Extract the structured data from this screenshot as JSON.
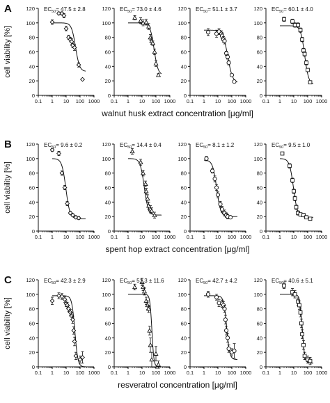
{
  "figure": {
    "shared_y_label": "cell viability [%]",
    "shared_y_ticks": [
      0,
      20,
      40,
      60,
      80,
      100,
      120
    ],
    "shared_x_ticks_labels": [
      "0.1",
      "1",
      "10",
      "100",
      "1000"
    ],
    "ec50_prefix": "EC",
    "ec50_subscript": "50",
    "ec50_separator": "= "
  },
  "chart_data": [
    {
      "type": "scatter",
      "panel_letter": "A",
      "xlabel": "walnut husk extract concentration [μg/ml]",
      "ylabel": "cell viability [%]",
      "x_scale": "log",
      "xlim": [
        0.1,
        1000
      ],
      "ylim": [
        0,
        120
      ],
      "grid": false,
      "subplots": [
        {
          "marker": "diamond",
          "ec50": "47.5 ± 2.8",
          "ec50_value": 47.5,
          "top": 100,
          "bottom": 33,
          "hill": 3,
          "points": [
            [
              1,
              101,
              3
            ],
            [
              3,
              113,
              2
            ],
            [
              5,
              113,
              2
            ],
            [
              7,
              110,
              3
            ],
            [
              10,
              92,
              3
            ],
            [
              15,
              80,
              3
            ],
            [
              20,
              77,
              3
            ],
            [
              25,
              74,
              4
            ],
            [
              30,
              69,
              3
            ],
            [
              40,
              66,
              4
            ],
            [
              80,
              42,
              3
            ],
            [
              150,
              22,
              1
            ]
          ]
        },
        {
          "marker": "triangle",
          "ec50": "73.0 ± 4.6",
          "ec50_value": 73.0,
          "top": 100,
          "bottom": 28,
          "hill": 3,
          "points": [
            [
              3,
              107,
              3
            ],
            [
              8,
              103,
              4
            ],
            [
              12,
              100,
              4
            ],
            [
              20,
              101,
              4
            ],
            [
              30,
              95,
              4
            ],
            [
              40,
              80,
              4
            ],
            [
              50,
              75,
              4
            ],
            [
              60,
              72,
              3
            ],
            [
              80,
              60,
              4
            ],
            [
              100,
              44,
              4
            ],
            [
              150,
              28,
              2
            ]
          ]
        },
        {
          "marker": "circle",
          "ec50": "51.1 ± 3.7",
          "ec50_value": 51.1,
          "top": 90,
          "bottom": 17,
          "hill": 2.5,
          "points": [
            [
              2,
              87,
              5
            ],
            [
              8,
              85,
              5
            ],
            [
              12,
              88,
              4
            ],
            [
              18,
              85,
              4
            ],
            [
              20,
              82,
              4
            ],
            [
              25,
              77,
              4
            ],
            [
              30,
              75,
              4
            ],
            [
              40,
              58,
              3
            ],
            [
              50,
              53,
              3
            ],
            [
              60,
              45,
              3
            ],
            [
              100,
              28,
              2
            ],
            [
              150,
              19,
              2
            ]
          ]
        },
        {
          "marker": "square",
          "ec50": "60.1 ± 4.0",
          "ec50_value": 60.1,
          "top": 96,
          "bottom": 15,
          "hill": 3,
          "points": [
            [
              2,
              105,
              3
            ],
            [
              8,
              102,
              3
            ],
            [
              12,
              97,
              3
            ],
            [
              20,
              97,
              3
            ],
            [
              30,
              90,
              3
            ],
            [
              40,
              77,
              3
            ],
            [
              50,
              62,
              3
            ],
            [
              60,
              57,
              3
            ],
            [
              80,
              45,
              3
            ],
            [
              100,
              35,
              2
            ],
            [
              150,
              18,
              2
            ]
          ]
        }
      ]
    },
    {
      "type": "scatter",
      "panel_letter": "B",
      "xlabel": "spent hop extract concentration [μg/ml]",
      "ylabel": "cell viability [%]",
      "x_scale": "log",
      "xlim": [
        0.1,
        1000
      ],
      "ylim": [
        0,
        120
      ],
      "grid": false,
      "subplots": [
        {
          "marker": "diamond",
          "ec50": "9.6 ± 0.2",
          "ec50_value": 9.6,
          "top": 100,
          "bottom": 17,
          "hill": 3,
          "points": [
            [
              1,
              112,
              2
            ],
            [
              3,
              107,
              3
            ],
            [
              5,
              80,
              3
            ],
            [
              8,
              60,
              3
            ],
            [
              12,
              38,
              3
            ],
            [
              20,
              25,
              2
            ],
            [
              30,
              22,
              2
            ],
            [
              50,
              19,
              2
            ],
            [
              80,
              18,
              2
            ]
          ]
        },
        {
          "marker": "triangle",
          "ec50": "14.4 ± 0.4",
          "ec50_value": 14.4,
          "top": 100,
          "bottom": 22,
          "hill": 3,
          "points": [
            [
              2,
              110,
              4
            ],
            [
              8,
              95,
              4
            ],
            [
              12,
              80,
              4
            ],
            [
              18,
              65,
              4
            ],
            [
              20,
              55,
              4
            ],
            [
              25,
              45,
              5
            ],
            [
              30,
              35,
              5
            ],
            [
              40,
              30,
              5
            ],
            [
              50,
              28,
              4
            ],
            [
              80,
              22,
              4
            ]
          ]
        },
        {
          "marker": "circle",
          "ec50": "8.1 ± 1.2",
          "ec50_value": 8.1,
          "top": 98,
          "bottom": 20,
          "hill": 3,
          "points": [
            [
              1.5,
              100,
              3
            ],
            [
              4,
              83,
              3
            ],
            [
              6,
              72,
              4
            ],
            [
              8,
              60,
              4
            ],
            [
              10,
              50,
              4
            ],
            [
              15,
              37,
              4
            ],
            [
              20,
              30,
              4
            ],
            [
              30,
              25,
              4
            ],
            [
              40,
              22,
              3
            ],
            [
              50,
              20,
              3
            ],
            [
              80,
              19,
              2
            ]
          ]
        },
        {
          "marker": "square",
          "ec50": "9.5 ± 1.0",
          "ec50_value": 9.5,
          "top": 100,
          "bottom": 19,
          "hill": 3,
          "points": [
            [
              1.5,
              107,
              2
            ],
            [
              5,
              90,
              3
            ],
            [
              8,
              70,
              3
            ],
            [
              10,
              55,
              3
            ],
            [
              12,
              45,
              3
            ],
            [
              15,
              33,
              3
            ],
            [
              20,
              25,
              3
            ],
            [
              30,
              23,
              2
            ],
            [
              50,
              22,
              2
            ],
            [
              80,
              19,
              2
            ],
            [
              150,
              17,
              2
            ]
          ]
        }
      ]
    },
    {
      "type": "scatter",
      "panel_letter": "C",
      "xlabel": "resveratrol concentration [μg/ml]",
      "ylabel": "cell viability [%]",
      "x_scale": "log",
      "xlim": [
        0.1,
        1000
      ],
      "ylim": [
        0,
        120
      ],
      "grid": false,
      "subplots": [
        {
          "marker": "diamond",
          "ec50": "42.3 ± 2.9",
          "ec50_value": 42.3,
          "top": 98,
          "bottom": 0,
          "hill": 4,
          "points": [
            [
              1,
              91,
              5
            ],
            [
              3,
              98,
              4
            ],
            [
              5,
              97,
              4
            ],
            [
              8,
              93,
              4
            ],
            [
              10,
              87,
              4
            ],
            [
              12,
              85,
              4
            ],
            [
              15,
              80,
              4
            ],
            [
              20,
              75,
              4
            ],
            [
              25,
              70,
              5
            ],
            [
              30,
              65,
              5
            ],
            [
              35,
              50,
              5
            ],
            [
              40,
              35,
              6
            ],
            [
              50,
              15,
              5
            ],
            [
              100,
              10,
              5
            ],
            [
              150,
              13,
              8
            ]
          ]
        },
        {
          "marker": "triangle",
          "ec50": "51.3 ± 11.6",
          "ec50_value": 51.3,
          "top": 100,
          "bottom": 0,
          "hill": 6,
          "points": [
            [
              3,
              110,
              4
            ],
            [
              10,
              117,
              5
            ],
            [
              12,
              110,
              5
            ],
            [
              15,
              104,
              5
            ],
            [
              20,
              91,
              5
            ],
            [
              25,
              85,
              6
            ],
            [
              30,
              80,
              5
            ],
            [
              35,
              50,
              6
            ],
            [
              40,
              30,
              10
            ],
            [
              50,
              10,
              10
            ],
            [
              100,
              18,
              10
            ],
            [
              150,
              3,
              5
            ]
          ]
        },
        {
          "marker": "circle",
          "ec50": "42.7 ± 4.2",
          "ec50_value": 42.7,
          "top": 98,
          "bottom": 10,
          "hill": 4,
          "points": [
            [
              2,
              100,
              4
            ],
            [
              8,
              96,
              4
            ],
            [
              12,
              88,
              5
            ],
            [
              20,
              87,
              5
            ],
            [
              25,
              85,
              5
            ],
            [
              30,
              80,
              5
            ],
            [
              35,
              65,
              6
            ],
            [
              40,
              50,
              6
            ],
            [
              50,
              40,
              6
            ],
            [
              60,
              25,
              5
            ],
            [
              100,
              20,
              5
            ],
            [
              150,
              22,
              10
            ]
          ]
        },
        {
          "marker": "square",
          "ec50": "40.6 ± 5.1",
          "ec50_value": 40.6,
          "top": 100,
          "bottom": 5,
          "hill": 5,
          "points": [
            [
              2,
              112,
              4
            ],
            [
              8,
              103,
              5
            ],
            [
              12,
              100,
              5
            ],
            [
              20,
              90,
              5
            ],
            [
              25,
              85,
              6
            ],
            [
              30,
              75,
              6
            ],
            [
              35,
              60,
              6
            ],
            [
              40,
              45,
              6
            ],
            [
              50,
              30,
              6
            ],
            [
              60,
              15,
              5
            ],
            [
              100,
              10,
              5
            ],
            [
              150,
              8,
              5
            ]
          ]
        }
      ]
    }
  ]
}
